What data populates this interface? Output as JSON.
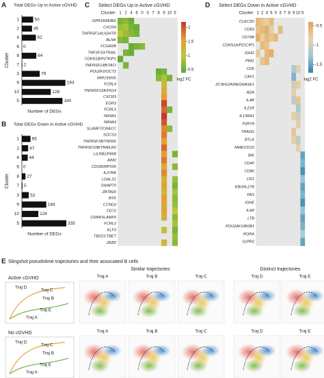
{
  "panel_letters": [
    "A",
    "B",
    "C",
    "D",
    "E"
  ],
  "chart_data": [
    {
      "type": "bar",
      "orientation": "horizontal",
      "title": "Total DEGs Up in Active cGVHD",
      "y_label": "Cluster",
      "x_label": "Number of DEGs",
      "categories": [
        "1",
        "2",
        "4",
        "6",
        "8",
        "7",
        "3",
        "9",
        "10",
        "5"
      ],
      "values": [
        50,
        45,
        62,
        0,
        64,
        2,
        79,
        193,
        128,
        180
      ],
      "color": "#111111",
      "xlim": [
        0,
        200
      ]
    },
    {
      "type": "bar",
      "orientation": "horizontal",
      "title": "Total DEGs Down in Active cGVHD",
      "y_label": "Cluster",
      "x_label": "Number of DEGs",
      "categories": [
        "1",
        "2",
        "4",
        "6",
        "8",
        "7",
        "3",
        "9",
        "10",
        "5"
      ],
      "values": [
        65,
        47,
        44,
        0,
        27,
        5,
        52,
        184,
        124,
        335
      ],
      "color": "#111111",
      "xlim": [
        0,
        340
      ]
    },
    {
      "type": "heatmap",
      "title": "Select DEGs Up in Active cGVHD",
      "x_label": "Cluster:",
      "columns": [
        "1",
        "2",
        "4",
        "6",
        "0",
        "3",
        "7",
        "8",
        "9",
        "10",
        "5"
      ],
      "rows": [
        "GPR183/EBI2",
        "CXCR4",
        "TNFRSF14/LIGHTR",
        "BLNK",
        "FCGR2B",
        "TNFSF10/TRAIL",
        "CDKN1B/P27KIP1",
        "TNFRSF13B/TACI",
        "POU2F2/OCT2",
        "MIR155HG",
        "FCRL4",
        "TNFRSF12A/FN14",
        "CXCR3",
        "EGR3",
        "FCRL5",
        "NR4A1",
        "NR4A3",
        "SLAMF7/CRACC",
        "SOCS3",
        "TNFRSF1B/TNFR2",
        "TNFRSF10B/TRAILR2",
        "LILRB1/PIRB",
        "AIM2",
        "CD180/RP105",
        "IL27RA",
        "LGALS1",
        "SWAP70",
        "ZBTB20",
        "BTK",
        "CCND3",
        "CD72",
        "CD84/SLAMF5",
        "FCRL2",
        "KLF3",
        "TBX21/TBET",
        "ZEB2"
      ],
      "values": [
        [
          0.6,
          0.7,
          0.5,
          null,
          null,
          null,
          null,
          null,
          null,
          null,
          null
        ],
        [
          0.8,
          0.9,
          0.6,
          0.5,
          null,
          null,
          null,
          null,
          null,
          null,
          null
        ],
        [
          1.0,
          0.8,
          0.7,
          0.6,
          null,
          null,
          null,
          null,
          null,
          null,
          null
        ],
        [
          0.7,
          0.6,
          null,
          null,
          null,
          null,
          null,
          null,
          null,
          null,
          null
        ],
        [
          null,
          null,
          0.5,
          0.6,
          0.7,
          null,
          null,
          null,
          null,
          null,
          null
        ],
        [
          null,
          0.6,
          0.5,
          null,
          null,
          null,
          null,
          null,
          null,
          null,
          null
        ],
        [
          0.5,
          null,
          null,
          null,
          null,
          null,
          null,
          null,
          null,
          null,
          null
        ],
        [
          null,
          0.6,
          null,
          null,
          null,
          null,
          null,
          null,
          null,
          null,
          null
        ],
        [
          null,
          null,
          null,
          null,
          null,
          null,
          null,
          0.5,
          0.6,
          null,
          null
        ],
        [
          null,
          null,
          null,
          null,
          null,
          null,
          null,
          0.7,
          0.9,
          0.6,
          null
        ],
        [
          null,
          null,
          null,
          null,
          null,
          null,
          null,
          null,
          1.2,
          null,
          null
        ],
        [
          null,
          null,
          null,
          null,
          null,
          null,
          null,
          null,
          1.4,
          null,
          null
        ],
        [
          null,
          null,
          null,
          null,
          null,
          null,
          null,
          null,
          1.6,
          null,
          null
        ],
        [
          null,
          null,
          null,
          null,
          null,
          null,
          null,
          null,
          2.1,
          null,
          null
        ],
        [
          null,
          null,
          null,
          null,
          null,
          null,
          null,
          null,
          1.9,
          0.6,
          null
        ],
        [
          null,
          null,
          null,
          null,
          null,
          null,
          null,
          null,
          2.2,
          null,
          null
        ],
        [
          null,
          null,
          null,
          null,
          null,
          null,
          null,
          null,
          2.0,
          null,
          null
        ],
        [
          null,
          null,
          null,
          null,
          null,
          null,
          null,
          null,
          1.7,
          0.7,
          null
        ],
        [
          null,
          null,
          null,
          null,
          null,
          null,
          null,
          null,
          1.8,
          null,
          null
        ],
        [
          null,
          null,
          null,
          null,
          null,
          null,
          null,
          null,
          1.5,
          null,
          null
        ],
        [
          null,
          null,
          null,
          null,
          null,
          null,
          null,
          null,
          1.9,
          null,
          null
        ],
        [
          null,
          null,
          null,
          null,
          null,
          null,
          null,
          null,
          1.6,
          null,
          0.6
        ],
        [
          null,
          null,
          null,
          null,
          null,
          null,
          null,
          null,
          1.8,
          null,
          null
        ],
        [
          null,
          null,
          null,
          null,
          null,
          null,
          null,
          null,
          1.4,
          null,
          0.7
        ],
        [
          null,
          null,
          null,
          null,
          null,
          null,
          null,
          null,
          1.7,
          null,
          null
        ],
        [
          null,
          null,
          null,
          null,
          null,
          null,
          null,
          null,
          1.3,
          null,
          0.8
        ],
        [
          null,
          null,
          null,
          null,
          null,
          null,
          null,
          null,
          1.5,
          null,
          0.6
        ],
        [
          null,
          null,
          null,
          null,
          null,
          null,
          null,
          null,
          1.2,
          null,
          0.9
        ],
        [
          null,
          null,
          null,
          null,
          null,
          null,
          null,
          null,
          1.6,
          null,
          0.7
        ],
        [
          null,
          null,
          null,
          null,
          null,
          null,
          null,
          null,
          1.4,
          null,
          0.8
        ],
        [
          null,
          null,
          null,
          null,
          null,
          null,
          null,
          null,
          1.5,
          null,
          1.0
        ],
        [
          null,
          null,
          null,
          null,
          null,
          null,
          null,
          null,
          1.3,
          null,
          0.7
        ],
        [
          null,
          null,
          null,
          null,
          null,
          null,
          null,
          null,
          null,
          null,
          0.9
        ],
        [
          null,
          null,
          null,
          null,
          null,
          null,
          null,
          null,
          1.1,
          null,
          0.6
        ],
        [
          null,
          null,
          null,
          null,
          null,
          null,
          null,
          null,
          null,
          null,
          0.8
        ],
        [
          null,
          null,
          null,
          null,
          null,
          null,
          null,
          null,
          1.2,
          null,
          0.7
        ]
      ],
      "clim": [
        0.4,
        2.2
      ],
      "cticks": [
        0.5,
        1.0,
        1.5,
        2.0
      ],
      "colorbar_label": "log2 FC",
      "colormap": [
        "#5aa83a",
        "#b9c93a",
        "#e89a35",
        "#c0392b"
      ],
      "empty_color": "#e6e6e6"
    },
    {
      "type": "heatmap",
      "title": "Select DEGs Down in Active cGVHD",
      "x_label": "Cluster:",
      "columns": [
        "1",
        "2",
        "4",
        "6",
        "0",
        "3",
        "7",
        "8",
        "9",
        "10",
        "5"
      ],
      "rows": [
        "CLEC2D",
        "CD83",
        "CD79B",
        "CDKN1A/P21CIP1",
        "IGHD",
        "PIM1",
        "CD5",
        "CAV1",
        "ZC3H12A/REGNASE1",
        "ADA",
        "IL4R",
        "IL21R",
        "IL13RA1",
        "P2RY8",
        "TRADD",
        "BTLA",
        "MME/CD10",
        "BIK",
        "CD40",
        "CD86",
        "CR1",
        "EBI3/IL27B",
        "FAS",
        "IGHE",
        "IL6R",
        "LTB",
        "POU2AF1/BOB1",
        "RORA",
        "S1PR2"
      ],
      "values": [
        [
          -0.6,
          -0.7,
          -0.8,
          -0.6,
          null,
          null,
          null,
          null,
          null,
          null,
          null
        ],
        [
          -0.7,
          -0.6,
          -0.5,
          -0.9,
          null,
          -0.6,
          null,
          null,
          null,
          null,
          null
        ],
        [
          -0.5,
          -0.8,
          -0.6,
          -0.7,
          -0.6,
          null,
          null,
          null,
          null,
          null,
          null
        ],
        [
          null,
          -0.6,
          -0.7,
          null,
          null,
          null,
          null,
          null,
          null,
          null,
          null
        ],
        [
          -0.8,
          null,
          -0.6,
          -0.5,
          null,
          null,
          null,
          null,
          null,
          null,
          null
        ],
        [
          null,
          -0.7,
          -0.6,
          null,
          null,
          null,
          null,
          null,
          null,
          null,
          null
        ],
        [
          null,
          null,
          null,
          null,
          null,
          null,
          null,
          null,
          -1.2,
          -0.9,
          null
        ],
        [
          null,
          null,
          null,
          null,
          null,
          null,
          null,
          null,
          -1.4,
          null,
          null
        ],
        [
          null,
          null,
          null,
          null,
          null,
          null,
          null,
          null,
          -1.0,
          -0.8,
          null
        ],
        [
          null,
          null,
          null,
          null,
          null,
          null,
          null,
          null,
          -0.9,
          null,
          null
        ],
        [
          null,
          null,
          null,
          null,
          null,
          null,
          null,
          null,
          -1.1,
          -0.7,
          null
        ],
        [
          null,
          null,
          null,
          null,
          null,
          null,
          null,
          null,
          null,
          -1.2,
          null
        ],
        [
          null,
          null,
          null,
          null,
          null,
          null,
          null,
          null,
          -0.8,
          -1.0,
          null
        ],
        [
          null,
          null,
          null,
          null,
          null,
          null,
          null,
          null,
          null,
          -0.9,
          null
        ],
        [
          null,
          null,
          null,
          null,
          null,
          null,
          null,
          null,
          -0.7,
          null,
          null
        ],
        [
          null,
          null,
          null,
          null,
          null,
          null,
          null,
          null,
          -0.8,
          -1.1,
          null
        ],
        [
          null,
          null,
          null,
          null,
          null,
          null,
          null,
          null,
          null,
          -0.9,
          null
        ],
        [
          null,
          null,
          null,
          null,
          null,
          null,
          null,
          null,
          null,
          null,
          -1.5
        ],
        [
          null,
          null,
          null,
          null,
          null,
          null,
          null,
          null,
          null,
          null,
          -1.4
        ],
        [
          null,
          null,
          null,
          null,
          null,
          null,
          null,
          null,
          null,
          null,
          -1.6
        ],
        [
          null,
          null,
          null,
          null,
          null,
          null,
          null,
          null,
          null,
          null,
          -1.3
        ],
        [
          null,
          null,
          null,
          null,
          null,
          null,
          null,
          null,
          null,
          null,
          -1.5
        ],
        [
          null,
          null,
          null,
          null,
          null,
          null,
          null,
          null,
          null,
          null,
          -1.4
        ],
        [
          null,
          null,
          null,
          null,
          null,
          null,
          null,
          null,
          null,
          null,
          -1.6
        ],
        [
          null,
          null,
          null,
          null,
          null,
          null,
          null,
          null,
          null,
          null,
          -1.3
        ],
        [
          null,
          null,
          null,
          null,
          null,
          null,
          null,
          null,
          null,
          null,
          -1.5
        ],
        [
          null,
          null,
          null,
          null,
          null,
          null,
          null,
          null,
          null,
          null,
          -1.4
        ],
        [
          null,
          null,
          null,
          null,
          null,
          null,
          null,
          null,
          null,
          null,
          -1.2
        ],
        [
          null,
          null,
          null,
          null,
          null,
          null,
          null,
          null,
          null,
          null,
          -1.5
        ]
      ],
      "clim": [
        -1.7,
        -0.4
      ],
      "cticks": [
        -1.5,
        -1.0,
        -0.5
      ],
      "colorbar_label": "log2 FC",
      "colormap": [
        "#2f83ad",
        "#9fc8d6",
        "#e7d2a8",
        "#e6a456"
      ],
      "empty_color": "#e6e6e6"
    }
  ],
  "panel_e": {
    "title": "Slingshot pseudotime trajectories and their associated B cells",
    "groups": [
      "Similar trajectories",
      "Distinct trajectories"
    ],
    "conditions": [
      "Active cGVHD",
      "No cGVHD"
    ],
    "image_labels": [
      "Traj A",
      "Traj B",
      "Traj C",
      "Traj D",
      "Traj E"
    ],
    "schematic_labels": [
      "Traj D",
      "Traj C",
      "Traj B",
      "Traj E",
      "Traj A"
    ]
  }
}
